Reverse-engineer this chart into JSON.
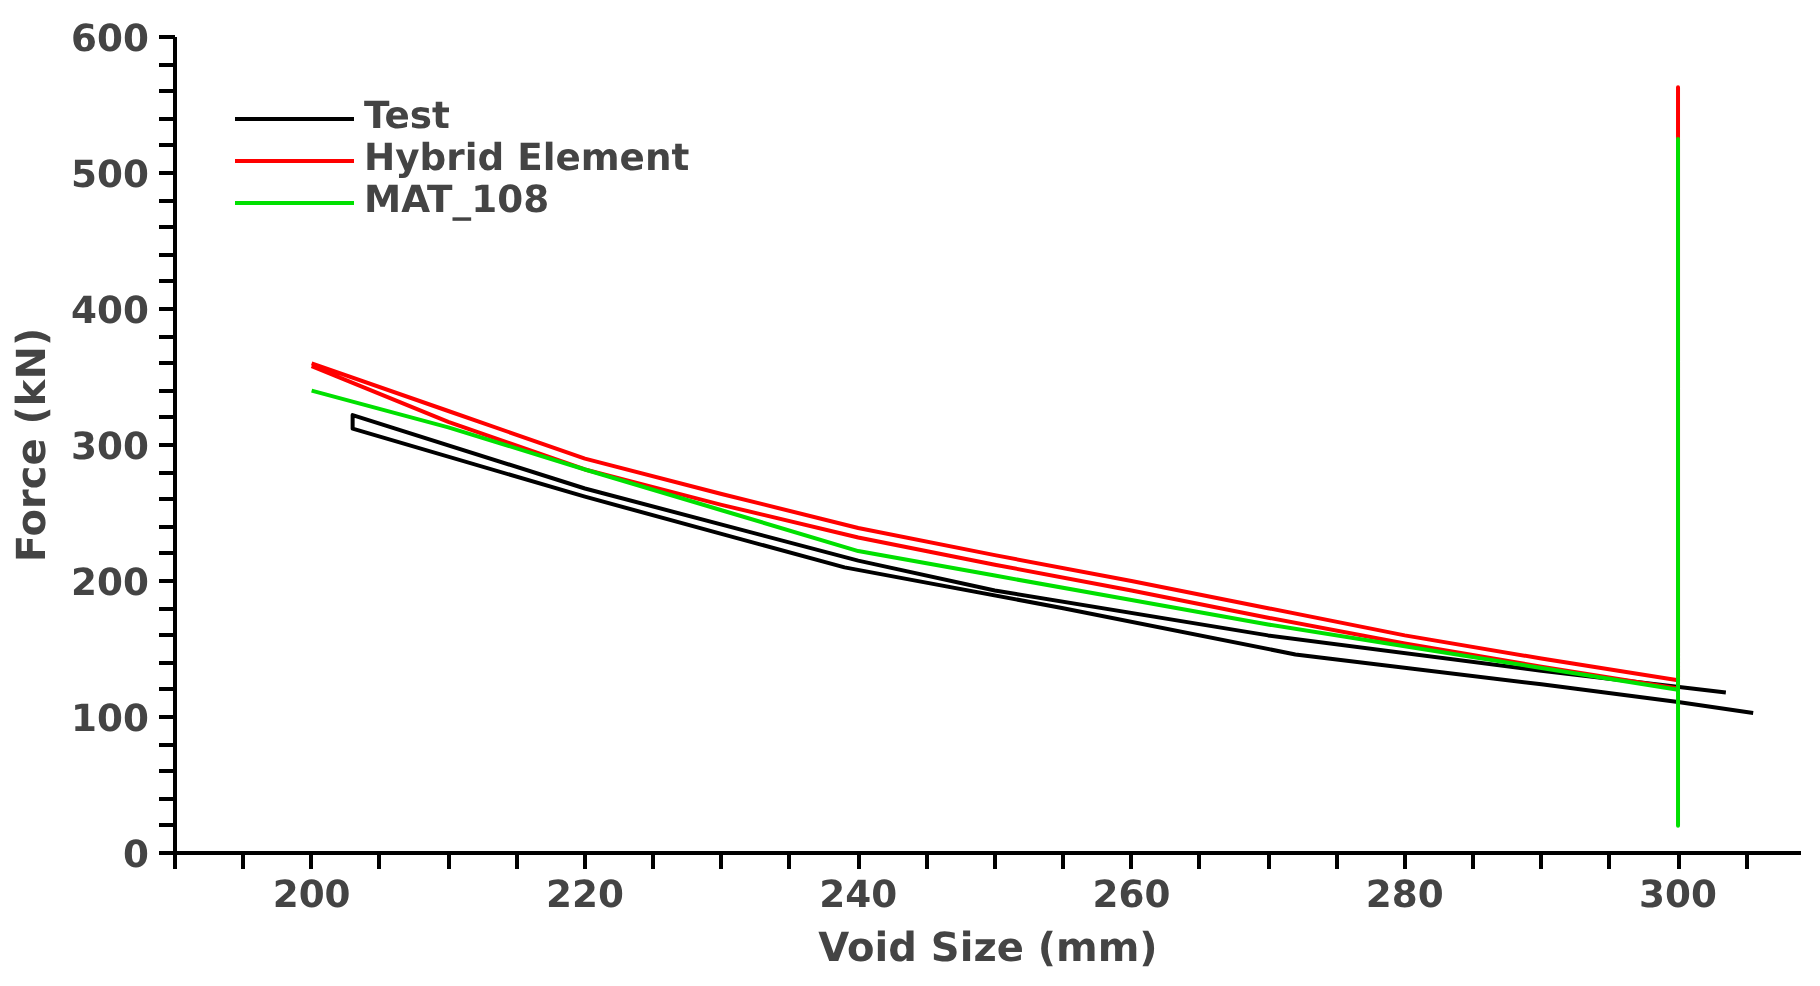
{
  "chart_data": {
    "type": "line",
    "xlabel": "Void Size (mm)",
    "ylabel": "Force (kN)",
    "xlim": [
      190,
      309
    ],
    "ylim": [
      0,
      600
    ],
    "xticks": [
      {
        "value": 190,
        "label": null
      },
      {
        "value": 195,
        "label": null
      },
      200,
      {
        "value": 205,
        "label": null
      },
      {
        "value": 210,
        "label": null
      },
      {
        "value": 215,
        "label": null
      },
      220,
      {
        "value": 225,
        "label": null
      },
      {
        "value": 230,
        "label": null
      },
      {
        "value": 235,
        "label": null
      },
      240,
      {
        "value": 245,
        "label": null
      },
      {
        "value": 250,
        "label": null
      },
      {
        "value": 255,
        "label": null
      },
      260,
      {
        "value": 265,
        "label": null
      },
      {
        "value": 270,
        "label": null
      },
      {
        "value": 275,
        "label": null
      },
      280,
      {
        "value": 285,
        "label": null
      },
      {
        "value": 290,
        "label": null
      },
      {
        "value": 295,
        "label": null
      },
      300,
      {
        "value": 305,
        "label": null
      }
    ],
    "yticks": [
      0,
      {
        "value": 20,
        "label": null
      },
      {
        "value": 40,
        "label": null
      },
      {
        "value": 60,
        "label": null
      },
      {
        "value": 80,
        "label": null
      },
      100,
      {
        "value": 120,
        "label": null
      },
      {
        "value": 140,
        "label": null
      },
      {
        "value": 160,
        "label": null
      },
      {
        "value": 180,
        "label": null
      },
      200,
      {
        "value": 220,
        "label": null
      },
      {
        "value": 240,
        "label": null
      },
      {
        "value": 260,
        "label": null
      },
      {
        "value": 280,
        "label": null
      },
      300,
      {
        "value": 320,
        "label": null
      },
      {
        "value": 340,
        "label": null
      },
      {
        "value": 360,
        "label": null
      },
      {
        "value": 380,
        "label": null
      },
      400,
      {
        "value": 420,
        "label": null
      },
      {
        "value": 440,
        "label": null
      },
      {
        "value": 460,
        "label": null
      },
      {
        "value": 480,
        "label": null
      },
      500,
      {
        "value": 520,
        "label": null
      },
      {
        "value": 540,
        "label": null
      },
      {
        "value": 560,
        "label": null
      },
      {
        "value": 580,
        "label": null
      },
      600
    ],
    "grid": false,
    "legend": "top left",
    "marker": "none",
    "line_style": "solid",
    "series": [
      {
        "name": "Test",
        "color": "#000000",
        "x": [
          303.5,
          290,
          270,
          250,
          240,
          220,
          203,
          203,
          220,
          239,
          255,
          272,
          290,
          300,
          305.5
        ],
        "values": [
          118,
          134,
          160,
          193,
          215,
          268,
          322,
          312,
          262,
          210,
          180,
          146,
          124,
          111,
          103
        ]
      },
      {
        "name": "Hybrid Element",
        "color": "#ff0000",
        "x": [
          200,
          210,
          220,
          230,
          240,
          250,
          260,
          270,
          280,
          290,
          300,
          300,
          300,
          290,
          280,
          270,
          260,
          250,
          240,
          230,
          220,
          210,
          200
        ],
        "values": [
          360,
          325,
          290,
          264,
          239,
          219,
          200,
          180,
          160,
          143,
          127,
          563,
          121,
          137,
          154,
          173,
          193,
          212,
          232,
          256,
          282,
          317,
          358
        ]
      },
      {
        "name": "MAT_108",
        "color": "#00e000",
        "x": [
          200,
          210,
          220,
          230,
          240,
          250,
          260,
          270,
          280,
          290,
          300,
          300,
          300,
          300
        ],
        "values": [
          340,
          313,
          282,
          252,
          222,
          204,
          186,
          168,
          152,
          136,
          120,
          525,
          20,
          115
        ]
      }
    ]
  }
}
